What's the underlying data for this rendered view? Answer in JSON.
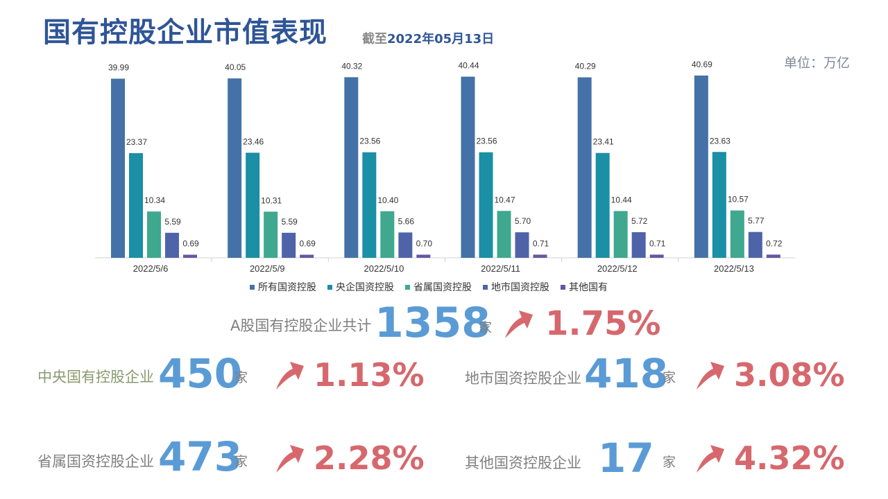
{
  "header": {
    "title": "国有控股企业市值表现",
    "date_prefix": "截至",
    "date_value": "2022年05月13日",
    "unit": "单位：万亿"
  },
  "colors": {
    "series": [
      "#4472a8",
      "#1a8fa5",
      "#3fa88e",
      "#4f63a8",
      "#6655a3"
    ],
    "number": "#5b9bd5",
    "percent": "#d6686d",
    "arrow": "#d6686d"
  },
  "chart_data": {
    "type": "bar",
    "categories": [
      "2022/5/6",
      "2022/5/9",
      "2022/5/10",
      "2022/5/11",
      "2022/5/12",
      "2022/5/13"
    ],
    "series": [
      {
        "name": "所有国资控股",
        "values": [
          39.99,
          40.05,
          40.32,
          40.44,
          40.29,
          40.69
        ]
      },
      {
        "name": "央企国资控股",
        "values": [
          23.37,
          23.46,
          23.56,
          23.56,
          23.41,
          23.63
        ]
      },
      {
        "name": "省属国资控股",
        "values": [
          10.34,
          10.31,
          10.4,
          10.47,
          10.44,
          10.57
        ]
      },
      {
        "name": "地市国资控股",
        "values": [
          5.59,
          5.59,
          5.66,
          5.7,
          5.72,
          5.77
        ]
      },
      {
        "name": "其他国有",
        "values": [
          0.69,
          0.69,
          0.7,
          0.71,
          0.71,
          0.72
        ]
      }
    ],
    "ylim": [
      0,
      42
    ],
    "legend": "bottom"
  },
  "stats": {
    "total": {
      "label": "A股国有控股企业共计",
      "count": "1358",
      "suffix": "家",
      "change": "1.75%",
      "direction": "up"
    },
    "central": {
      "label": "中央国有控股企业",
      "count": "450",
      "suffix": "家",
      "change": "1.13%",
      "direction": "up"
    },
    "city": {
      "label": "地市国资控股企业",
      "count": "418",
      "suffix": "家",
      "change": "3.08%",
      "direction": "up"
    },
    "provincial": {
      "label": "省属国资控股企业",
      "count": "473",
      "suffix": "家",
      "change": "2.28%",
      "direction": "up"
    },
    "other": {
      "label": "其他国资控股企业",
      "count": "17",
      "suffix": "家",
      "change": "4.32%",
      "direction": "up"
    }
  }
}
